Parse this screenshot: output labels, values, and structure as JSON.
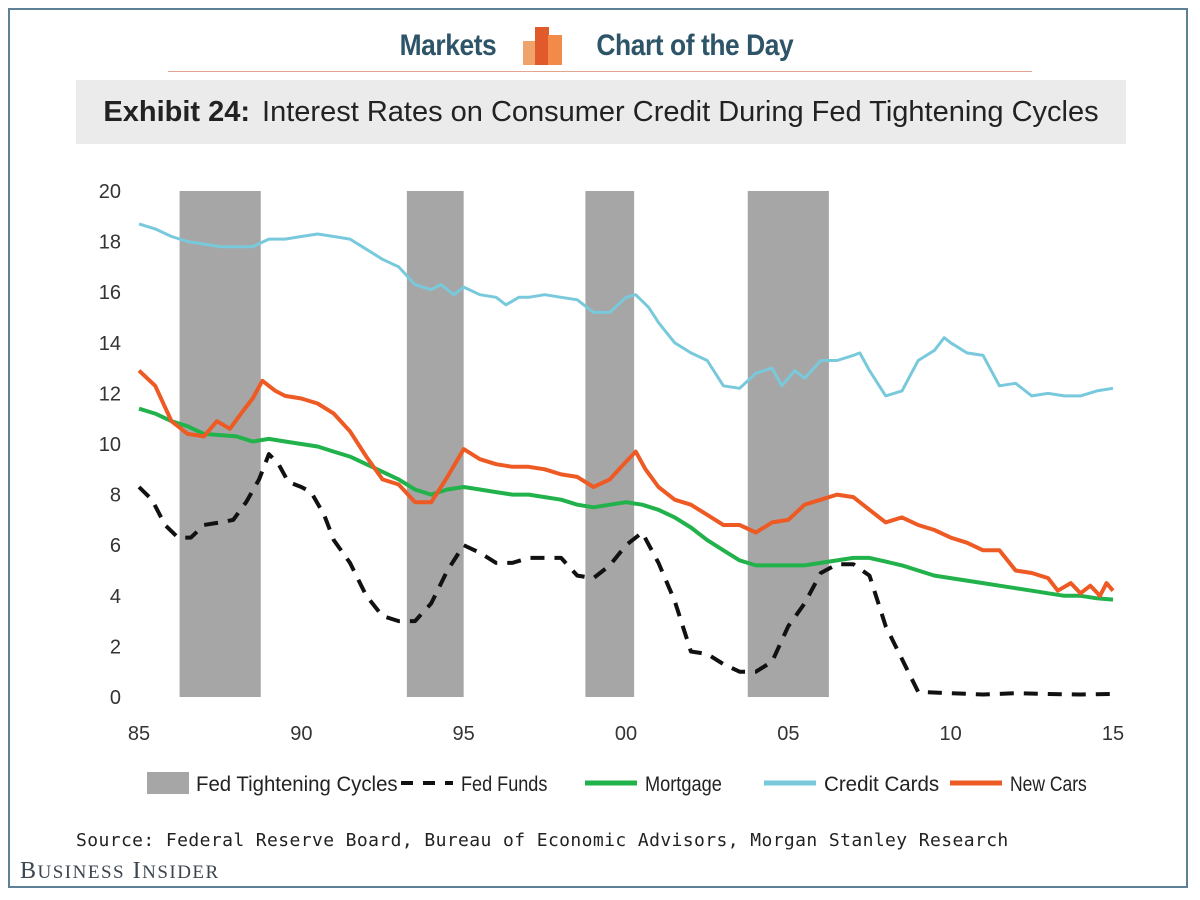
{
  "header": {
    "left_label": "Markets",
    "right_label": "Chart of the Day",
    "icon": "bar-chart-logo-icon",
    "icon_colors": [
      "#f0a26b",
      "#e05a2b",
      "#f28a4a"
    ]
  },
  "title": {
    "lead": "Exhibit 24:",
    "text": "Interest Rates on Consumer Credit During Fed Tightening Cycles"
  },
  "source": "Source: Federal Reserve Board, Bureau of Economic Advisors, Morgan Stanley Research",
  "brand": {
    "first_initial": "B",
    "first_rest": "USINESS",
    "second_initial": "I",
    "second_rest": "NSIDER"
  },
  "chart_data": {
    "type": "line",
    "title": "Interest Rates on Consumer Credit During Fed Tightening Cycles",
    "xlabel": "",
    "ylabel": "",
    "xlim": [
      1985,
      2015
    ],
    "ylim": [
      0,
      20
    ],
    "grid": false,
    "legend_position": "bottom",
    "x_ticks": [
      1985,
      1990,
      1995,
      2000,
      2005,
      2010,
      2015
    ],
    "x_tick_labels": [
      "85",
      "90",
      "95",
      "00",
      "05",
      "10",
      "15"
    ],
    "y_ticks": [
      0,
      2,
      4,
      6,
      8,
      10,
      12,
      14,
      16,
      18,
      20
    ],
    "y_tick_labels": [
      "0",
      "2",
      "4",
      "6",
      "8",
      "10",
      "12",
      "14",
      "16",
      "18",
      "20"
    ],
    "shaded_periods": {
      "name": "Fed Tightening Cycles",
      "color": "#a6a6a6",
      "ranges": [
        [
          1986.25,
          1988.75
        ],
        [
          1993.25,
          1995.0
        ],
        [
          1998.75,
          2000.25
        ],
        [
          2003.75,
          2006.25
        ]
      ]
    },
    "series": [
      {
        "name": "Fed Funds",
        "color": "#111111",
        "style": "dashed",
        "points": [
          [
            1985,
            8.3
          ],
          [
            1985.4,
            7.8
          ],
          [
            1985.8,
            6.8
          ],
          [
            1986.2,
            6.3
          ],
          [
            1986.6,
            6.3
          ],
          [
            1987,
            6.8
          ],
          [
            1987.5,
            6.9
          ],
          [
            1987.9,
            7.0
          ],
          [
            1988.3,
            7.7
          ],
          [
            1988.7,
            8.6
          ],
          [
            1989.0,
            9.6
          ],
          [
            1989.3,
            9.2
          ],
          [
            1989.6,
            8.5
          ],
          [
            1990,
            8.3
          ],
          [
            1990.3,
            8.1
          ],
          [
            1990.7,
            7.2
          ],
          [
            1991.0,
            6.2
          ],
          [
            1991.5,
            5.3
          ],
          [
            1992.0,
            4.0
          ],
          [
            1992.5,
            3.2
          ],
          [
            1993.0,
            3.0
          ],
          [
            1993.5,
            3.0
          ],
          [
            1994.0,
            3.7
          ],
          [
            1994.5,
            5.0
          ],
          [
            1995.0,
            6.0
          ],
          [
            1995.5,
            5.7
          ],
          [
            1996.0,
            5.3
          ],
          [
            1996.5,
            5.3
          ],
          [
            1997.0,
            5.5
          ],
          [
            1997.5,
            5.5
          ],
          [
            1998.0,
            5.5
          ],
          [
            1998.5,
            4.8
          ],
          [
            1999.0,
            4.7
          ],
          [
            1999.5,
            5.2
          ],
          [
            2000.0,
            6.0
          ],
          [
            2000.5,
            6.5
          ],
          [
            2001.0,
            5.3
          ],
          [
            2001.5,
            3.8
          ],
          [
            2002.0,
            1.8
          ],
          [
            2002.5,
            1.7
          ],
          [
            2003.0,
            1.3
          ],
          [
            2003.5,
            1.0
          ],
          [
            2004.0,
            1.0
          ],
          [
            2004.5,
            1.4
          ],
          [
            2005.0,
            2.8
          ],
          [
            2005.5,
            3.7
          ],
          [
            2006.0,
            4.9
          ],
          [
            2006.5,
            5.25
          ],
          [
            2007.0,
            5.25
          ],
          [
            2007.5,
            4.8
          ],
          [
            2008.0,
            2.8
          ],
          [
            2008.5,
            1.5
          ],
          [
            2009.0,
            0.2
          ],
          [
            2010,
            0.15
          ],
          [
            2011,
            0.1
          ],
          [
            2012,
            0.15
          ],
          [
            2013,
            0.12
          ],
          [
            2014,
            0.1
          ],
          [
            2015,
            0.12
          ]
        ]
      },
      {
        "name": "Mortgage",
        "color": "#22b24c",
        "style": "solid",
        "points": [
          [
            1985,
            11.4
          ],
          [
            1985.5,
            11.2
          ],
          [
            1986,
            10.9
          ],
          [
            1986.5,
            10.7
          ],
          [
            1987,
            10.4
          ],
          [
            1988,
            10.3
          ],
          [
            1988.5,
            10.1
          ],
          [
            1989,
            10.2
          ],
          [
            1989.5,
            10.1
          ],
          [
            1990,
            10.0
          ],
          [
            1990.5,
            9.9
          ],
          [
            1991,
            9.7
          ],
          [
            1991.5,
            9.5
          ],
          [
            1992,
            9.2
          ],
          [
            1992.5,
            8.9
          ],
          [
            1993,
            8.6
          ],
          [
            1993.5,
            8.2
          ],
          [
            1994,
            8.0
          ],
          [
            1994.5,
            8.2
          ],
          [
            1995,
            8.3
          ],
          [
            1995.5,
            8.2
          ],
          [
            1996,
            8.1
          ],
          [
            1996.5,
            8.0
          ],
          [
            1997,
            8.0
          ],
          [
            1997.5,
            7.9
          ],
          [
            1998,
            7.8
          ],
          [
            1998.5,
            7.6
          ],
          [
            1999,
            7.5
          ],
          [
            1999.5,
            7.6
          ],
          [
            2000,
            7.7
          ],
          [
            2000.5,
            7.6
          ],
          [
            2001,
            7.4
          ],
          [
            2001.5,
            7.1
          ],
          [
            2002,
            6.7
          ],
          [
            2002.5,
            6.2
          ],
          [
            2003,
            5.8
          ],
          [
            2003.5,
            5.4
          ],
          [
            2004,
            5.2
          ],
          [
            2004.5,
            5.2
          ],
          [
            2005,
            5.2
          ],
          [
            2005.5,
            5.2
          ],
          [
            2006,
            5.3
          ],
          [
            2006.5,
            5.4
          ],
          [
            2007,
            5.5
          ],
          [
            2007.5,
            5.5
          ],
          [
            2008,
            5.35
          ],
          [
            2008.5,
            5.2
          ],
          [
            2009,
            5.0
          ],
          [
            2009.5,
            4.8
          ],
          [
            2010,
            4.7
          ],
          [
            2010.5,
            4.6
          ],
          [
            2011,
            4.5
          ],
          [
            2011.5,
            4.4
          ],
          [
            2012,
            4.3
          ],
          [
            2012.5,
            4.2
          ],
          [
            2013,
            4.1
          ],
          [
            2013.5,
            4.0
          ],
          [
            2014,
            4.0
          ],
          [
            2014.5,
            3.9
          ],
          [
            2015,
            3.85
          ]
        ]
      },
      {
        "name": "Credit Cards",
        "color": "#79c9dc",
        "style": "solid",
        "points": [
          [
            1985,
            18.7
          ],
          [
            1985.5,
            18.5
          ],
          [
            1986,
            18.2
          ],
          [
            1986.5,
            18.0
          ],
          [
            1987,
            17.9
          ],
          [
            1987.5,
            17.8
          ],
          [
            1988,
            17.8
          ],
          [
            1988.5,
            17.8
          ],
          [
            1989,
            18.1
          ],
          [
            1989.5,
            18.1
          ],
          [
            1990,
            18.2
          ],
          [
            1990.5,
            18.3
          ],
          [
            1991,
            18.2
          ],
          [
            1991.5,
            18.1
          ],
          [
            1992,
            17.7
          ],
          [
            1992.5,
            17.3
          ],
          [
            1993,
            17.0
          ],
          [
            1993.5,
            16.3
          ],
          [
            1994,
            16.1
          ],
          [
            1994.3,
            16.3
          ],
          [
            1994.7,
            15.9
          ],
          [
            1995,
            16.2
          ],
          [
            1995.5,
            15.9
          ],
          [
            1996,
            15.8
          ],
          [
            1996.3,
            15.5
          ],
          [
            1996.7,
            15.8
          ],
          [
            1997,
            15.8
          ],
          [
            1997.5,
            15.9
          ],
          [
            1998,
            15.8
          ],
          [
            1998.5,
            15.7
          ],
          [
            1999,
            15.2
          ],
          [
            1999.5,
            15.2
          ],
          [
            2000,
            15.8
          ],
          [
            2000.3,
            15.9
          ],
          [
            2000.7,
            15.4
          ],
          [
            2001,
            14.8
          ],
          [
            2001.5,
            14.0
          ],
          [
            2002,
            13.6
          ],
          [
            2002.5,
            13.3
          ],
          [
            2003,
            12.3
          ],
          [
            2003.5,
            12.2
          ],
          [
            2004,
            12.8
          ],
          [
            2004.5,
            13.0
          ],
          [
            2004.8,
            12.3
          ],
          [
            2005.2,
            12.9
          ],
          [
            2005.5,
            12.6
          ],
          [
            2006,
            13.3
          ],
          [
            2006.5,
            13.3
          ],
          [
            2007,
            13.5
          ],
          [
            2007.2,
            13.6
          ],
          [
            2007.5,
            12.9
          ],
          [
            2008,
            11.9
          ],
          [
            2008.5,
            12.1
          ],
          [
            2009,
            13.3
          ],
          [
            2009.5,
            13.7
          ],
          [
            2009.8,
            14.2
          ],
          [
            2010,
            14.0
          ],
          [
            2010.5,
            13.6
          ],
          [
            2011,
            13.5
          ],
          [
            2011.5,
            12.3
          ],
          [
            2012,
            12.4
          ],
          [
            2012.5,
            11.9
          ],
          [
            2013,
            12.0
          ],
          [
            2013.5,
            11.9
          ],
          [
            2014,
            11.9
          ],
          [
            2014.5,
            12.1
          ],
          [
            2015,
            12.2
          ]
        ]
      },
      {
        "name": "New Cars",
        "color": "#ee5a24",
        "style": "solid",
        "points": [
          [
            1985,
            12.9
          ],
          [
            1985.5,
            12.3
          ],
          [
            1986,
            10.9
          ],
          [
            1986.5,
            10.4
          ],
          [
            1987,
            10.3
          ],
          [
            1987.4,
            10.9
          ],
          [
            1987.8,
            10.6
          ],
          [
            1988.2,
            11.3
          ],
          [
            1988.5,
            11.8
          ],
          [
            1988.8,
            12.5
          ],
          [
            1989.2,
            12.1
          ],
          [
            1989.5,
            11.9
          ],
          [
            1990,
            11.8
          ],
          [
            1990.5,
            11.6
          ],
          [
            1991,
            11.2
          ],
          [
            1991.5,
            10.5
          ],
          [
            1992,
            9.5
          ],
          [
            1992.5,
            8.6
          ],
          [
            1993,
            8.4
          ],
          [
            1993.5,
            7.7
          ],
          [
            1994,
            7.7
          ],
          [
            1994.5,
            8.7
          ],
          [
            1995,
            9.8
          ],
          [
            1995.5,
            9.4
          ],
          [
            1996,
            9.2
          ],
          [
            1996.5,
            9.1
          ],
          [
            1997,
            9.1
          ],
          [
            1997.5,
            9.0
          ],
          [
            1998,
            8.8
          ],
          [
            1998.5,
            8.7
          ],
          [
            1999,
            8.3
          ],
          [
            1999.5,
            8.6
          ],
          [
            2000,
            9.3
          ],
          [
            2000.3,
            9.7
          ],
          [
            2000.6,
            9.0
          ],
          [
            2001,
            8.3
          ],
          [
            2001.5,
            7.8
          ],
          [
            2002,
            7.6
          ],
          [
            2002.5,
            7.2
          ],
          [
            2003,
            6.8
          ],
          [
            2003.5,
            6.8
          ],
          [
            2004,
            6.5
          ],
          [
            2004.5,
            6.9
          ],
          [
            2005,
            7.0
          ],
          [
            2005.5,
            7.6
          ],
          [
            2006,
            7.8
          ],
          [
            2006.5,
            8.0
          ],
          [
            2007,
            7.9
          ],
          [
            2007.5,
            7.4
          ],
          [
            2008,
            6.9
          ],
          [
            2008.5,
            7.1
          ],
          [
            2009,
            6.8
          ],
          [
            2009.5,
            6.6
          ],
          [
            2010,
            6.3
          ],
          [
            2010.5,
            6.1
          ],
          [
            2011,
            5.8
          ],
          [
            2011.5,
            5.8
          ],
          [
            2012,
            5.0
          ],
          [
            2012.5,
            4.9
          ],
          [
            2013,
            4.7
          ],
          [
            2013.3,
            4.2
          ],
          [
            2013.7,
            4.5
          ],
          [
            2014,
            4.1
          ],
          [
            2014.3,
            4.4
          ],
          [
            2014.6,
            4.0
          ],
          [
            2014.8,
            4.5
          ],
          [
            2015,
            4.2
          ]
        ]
      }
    ]
  }
}
